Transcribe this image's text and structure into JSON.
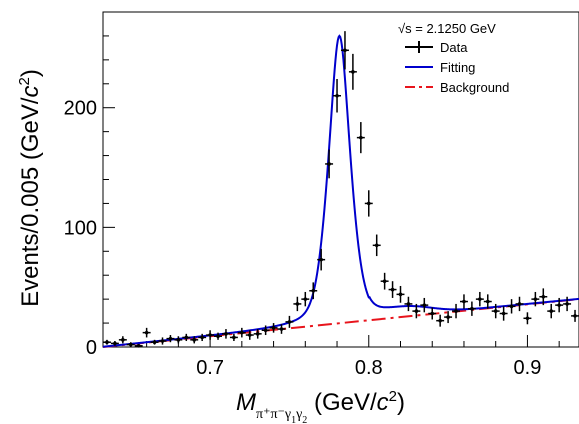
{
  "chart_data": {
    "type": "scatter",
    "title": "",
    "xlabel": {
      "main": "M",
      "sub": "π⁺π⁻γ",
      "sub2a": "1",
      "sub2b": "γ",
      "sub2c": "2",
      "units_prefix": " (GeV/",
      "units_c": "c",
      "units_exp": "2",
      "units_suffix": ")"
    },
    "ylabel": {
      "prefix": "Events/0.005 (GeV/",
      "c": "c",
      "exp": "2",
      "suffix": ")"
    },
    "xlim": [
      0.6325,
      0.9325
    ],
    "ylim": [
      0,
      280
    ],
    "x_ticks": [
      0.7,
      0.8,
      0.9
    ],
    "x_tick_labels": [
      "0.7",
      "0.8",
      "0.9"
    ],
    "y_ticks": [
      0,
      100,
      200
    ],
    "y_tick_labels": [
      "0",
      "100",
      "200"
    ],
    "legend": {
      "header": "√s = 2.1250 GeV",
      "entries": [
        "Data",
        "Fitting",
        "Background"
      ]
    },
    "colors": {
      "data": "#000000",
      "fit": "#0000cc",
      "background": "#e8141c"
    },
    "series": [
      {
        "name": "Data",
        "kind": "points",
        "x": [
          0.635,
          0.64,
          0.645,
          0.65,
          0.655,
          0.66,
          0.665,
          0.67,
          0.675,
          0.68,
          0.685,
          0.69,
          0.695,
          0.7,
          0.705,
          0.71,
          0.715,
          0.72,
          0.725,
          0.73,
          0.735,
          0.74,
          0.745,
          0.75,
          0.755,
          0.76,
          0.765,
          0.77,
          0.775,
          0.78,
          0.785,
          0.79,
          0.795,
          0.8,
          0.805,
          0.81,
          0.815,
          0.82,
          0.825,
          0.83,
          0.835,
          0.84,
          0.845,
          0.85,
          0.855,
          0.86,
          0.865,
          0.87,
          0.875,
          0.88,
          0.885,
          0.89,
          0.895,
          0.9,
          0.905,
          0.91,
          0.915,
          0.92,
          0.925,
          0.93
        ],
        "y": [
          4,
          3,
          6,
          2,
          1,
          12,
          4,
          5,
          7,
          6,
          8,
          6,
          8,
          10,
          9,
          11,
          8,
          12,
          10,
          11,
          14,
          16,
          15,
          21,
          36,
          40,
          47,
          73,
          153,
          210,
          248,
          230,
          175,
          120,
          85,
          55,
          48,
          44,
          36,
          30,
          35,
          28,
          22,
          25,
          30,
          38,
          32,
          40,
          38,
          30,
          28,
          34,
          36,
          24,
          40,
          42,
          30,
          35,
          36,
          26
        ],
        "yerr": [
          2,
          2,
          3,
          2,
          1,
          4,
          2,
          3,
          3,
          3,
          3,
          3,
          3,
          4,
          3,
          4,
          3,
          4,
          4,
          4,
          4,
          4,
          4,
          5,
          6,
          6,
          7,
          9,
          12,
          14,
          16,
          15,
          13,
          11,
          9,
          7,
          7,
          7,
          6,
          6,
          6,
          5,
          5,
          5,
          6,
          6,
          6,
          6,
          6,
          6,
          6,
          6,
          6,
          5,
          6,
          7,
          6,
          6,
          6,
          5
        ]
      },
      {
        "name": "Fitting",
        "kind": "curve",
        "peak_x": 0.7815,
        "peak_y": 260
      },
      {
        "name": "Background",
        "kind": "line",
        "x": [
          0.6325,
          0.9325
        ],
        "y": [
          0,
          40
        ]
      }
    ]
  }
}
